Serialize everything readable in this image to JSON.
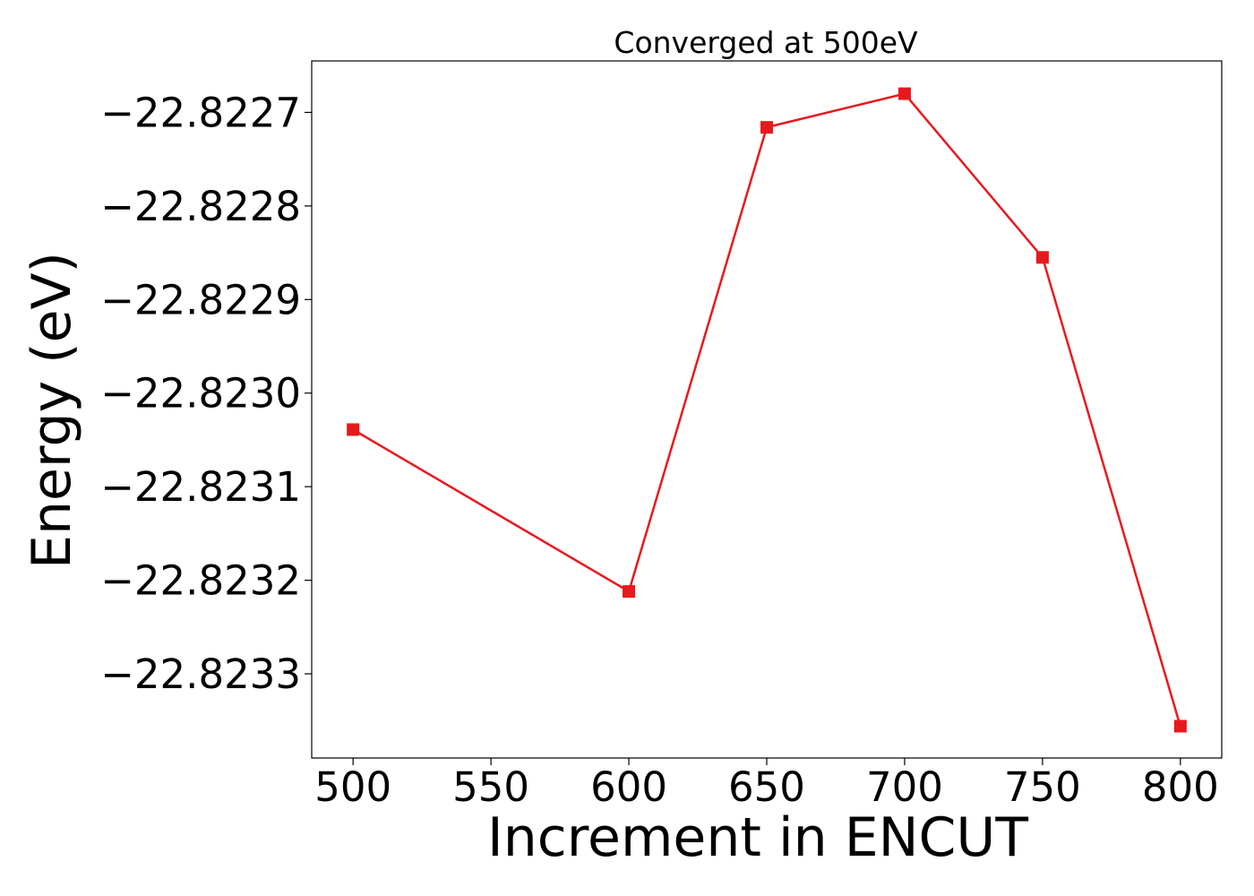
{
  "chart_data": {
    "type": "line",
    "title": "Converged at 500eV",
    "xlabel": "Increment in ENCUT",
    "ylabel": "Energy (eV)",
    "x": [
      500,
      600,
      650,
      700,
      750,
      800
    ],
    "series": [
      {
        "values": [
          -22.823039,
          -22.823212,
          -22.822716,
          -22.82268,
          -22.822855,
          -22.823356
        ],
        "color": "#e8191e",
        "marker": "square"
      }
    ],
    "xticks": [
      500,
      550,
      600,
      650,
      700,
      750,
      800
    ],
    "xtick_labels": [
      "500",
      "550",
      "600",
      "650",
      "700",
      "750",
      "800"
    ],
    "yticks": [
      -22.8227,
      -22.8228,
      -22.8229,
      -22.823,
      -22.8231,
      -22.8232,
      -22.8233
    ],
    "ytick_labels": [
      "−22.8227",
      "−22.8228",
      "−22.8229",
      "−22.8230",
      "−22.8231",
      "−22.8232",
      "−22.8233"
    ],
    "xlim": [
      485,
      815
    ],
    "ylim": [
      -22.82339,
      -22.822645
    ],
    "grid": false,
    "legend": "none"
  }
}
